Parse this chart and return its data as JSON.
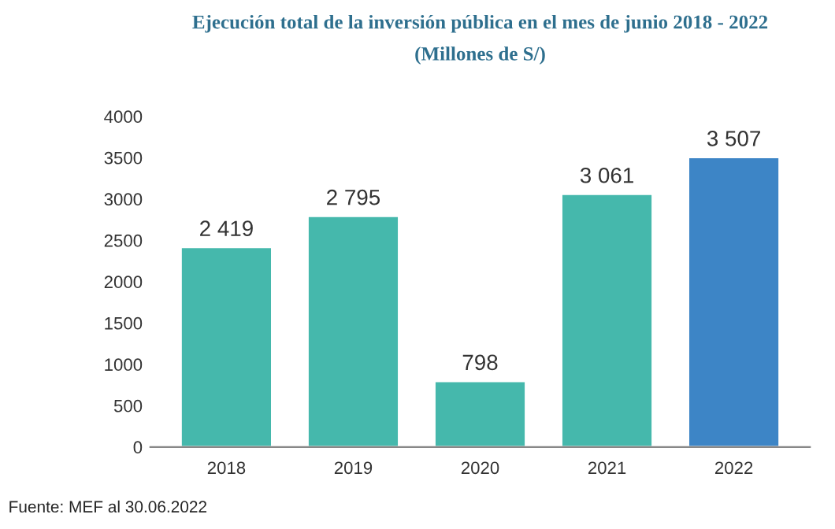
{
  "chart_data": {
    "type": "bar",
    "title": "Ejecución total de la inversión pública en el mes de junio 2018 - 2022",
    "subtitle": "(Millones de S/)",
    "categories": [
      "2018",
      "2019",
      "2020",
      "2021",
      "2022"
    ],
    "values": [
      2419,
      2795,
      798,
      3061,
      3507
    ],
    "colors": [
      "#45b8ac",
      "#45b8ac",
      "#45b8ac",
      "#45b8ac",
      "#3d85c6"
    ],
    "value_labels": [
      "2 419",
      "2 795",
      "798",
      "3 061",
      "3 507"
    ],
    "ylim": [
      0,
      4000
    ],
    "yticks": [
      0,
      500,
      1000,
      1500,
      2000,
      2500,
      3000,
      3500,
      4000
    ],
    "grid": false,
    "annotations": [
      "Fuente: MEF al 30.06.2022"
    ]
  }
}
